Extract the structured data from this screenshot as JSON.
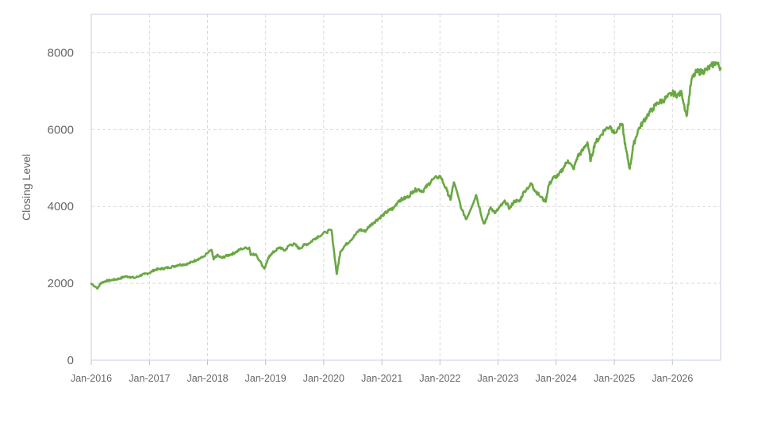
{
  "chart_data": {
    "type": "line",
    "title": "",
    "xlabel": "",
    "ylabel": "Closing Level",
    "xlim": [
      "2016-01-01",
      "2026-10-31"
    ],
    "ylim": [
      0,
      9000
    ],
    "y_ticks": [
      0,
      2000,
      4000,
      6000,
      8000
    ],
    "x_ticks": [
      {
        "date": "2016-01-01",
        "label": "Jan-2016"
      },
      {
        "date": "2017-01-01",
        "label": "Jan-2017"
      },
      {
        "date": "2018-01-01",
        "label": "Jan-2018"
      },
      {
        "date": "2019-01-01",
        "label": "Jan-2019"
      },
      {
        "date": "2020-01-01",
        "label": "Jan-2020"
      },
      {
        "date": "2021-01-01",
        "label": "Jan-2021"
      },
      {
        "date": "2022-01-01",
        "label": "Jan-2022"
      },
      {
        "date": "2023-01-01",
        "label": "Jan-2023"
      },
      {
        "date": "2024-01-01",
        "label": "Jan-2024"
      },
      {
        "date": "2025-01-01",
        "label": "Jan-2025"
      },
      {
        "date": "2026-01-01",
        "label": "Jan-2026"
      }
    ],
    "grid": true,
    "legend": "none",
    "series": [
      {
        "color": "#6aa843",
        "x": [
          "2016-01-01",
          "2016-02-11",
          "2016-03-01",
          "2016-04-01",
          "2016-05-01",
          "2016-06-01",
          "2016-07-01",
          "2016-08-01",
          "2016-09-01",
          "2016-10-01",
          "2016-11-01",
          "2016-12-01",
          "2017-01-01",
          "2017-02-01",
          "2017-03-01",
          "2017-04-01",
          "2017-05-01",
          "2017-06-01",
          "2017-07-01",
          "2017-08-01",
          "2017-09-01",
          "2017-10-01",
          "2017-11-01",
          "2017-12-01",
          "2018-01-26",
          "2018-02-08",
          "2018-03-01",
          "2018-04-01",
          "2018-05-01",
          "2018-06-01",
          "2018-07-01",
          "2018-08-01",
          "2018-09-20",
          "2018-10-01",
          "2018-11-01",
          "2018-12-24",
          "2019-01-15",
          "2019-02-01",
          "2019-03-01",
          "2019-04-01",
          "2019-05-01",
          "2019-06-01",
          "2019-07-01",
          "2019-08-01",
          "2019-09-01",
          "2019-10-01",
          "2019-11-01",
          "2019-12-01",
          "2020-01-15",
          "2020-02-19",
          "2020-03-23",
          "2020-04-15",
          "2020-05-15",
          "2020-06-15",
          "2020-07-15",
          "2020-08-15",
          "2020-09-15",
          "2020-10-15",
          "2020-11-15",
          "2020-12-15",
          "2021-01-15",
          "2021-02-15",
          "2021-03-15",
          "2021-04-15",
          "2021-05-15",
          "2021-06-15",
          "2021-07-15",
          "2021-08-15",
          "2021-09-15",
          "2021-10-15",
          "2021-11-15",
          "2022-01-03",
          "2022-02-15",
          "2022-03-08",
          "2022-03-29",
          "2022-05-20",
          "2022-06-16",
          "2022-08-16",
          "2022-09-30",
          "2022-10-12",
          "2022-11-15",
          "2022-12-15",
          "2023-01-15",
          "2023-02-15",
          "2023-03-15",
          "2023-04-15",
          "2023-05-15",
          "2023-06-15",
          "2023-07-31",
          "2023-08-15",
          "2023-09-15",
          "2023-10-27",
          "2023-11-15",
          "2023-12-15",
          "2024-01-15",
          "2024-02-15",
          "2024-03-15",
          "2024-04-19",
          "2024-05-15",
          "2024-06-15",
          "2024-07-16",
          "2024-08-05",
          "2024-09-01",
          "2024-10-01",
          "2024-11-01",
          "2024-12-06",
          "2025-01-01",
          "2025-02-19",
          "2025-03-13",
          "2025-04-08",
          "2025-05-01",
          "2025-06-01",
          "2025-07-01",
          "2025-08-01",
          "2025-09-01",
          "2025-10-01",
          "2025-11-01",
          "2025-12-01",
          "2026-01-01",
          "2026-02-01",
          "2026-03-01",
          "2026-03-31",
          "2026-05-01",
          "2026-06-01",
          "2026-07-01",
          "2026-08-01",
          "2026-09-01",
          "2026-10-01",
          "2026-10-31"
        ],
        "y": [
          1990,
          1870,
          2010,
          2060,
          2080,
          2100,
          2130,
          2180,
          2170,
          2140,
          2200,
          2240,
          2270,
          2350,
          2370,
          2390,
          2410,
          2440,
          2480,
          2490,
          2510,
          2570,
          2630,
          2680,
          2870,
          2620,
          2730,
          2660,
          2720,
          2760,
          2820,
          2900,
          2930,
          2740,
          2760,
          2380,
          2620,
          2750,
          2840,
          2940,
          2850,
          3000,
          3020,
          2900,
          3000,
          3040,
          3150,
          3230,
          3330,
          3390,
          2240,
          2830,
          2990,
          3110,
          3250,
          3400,
          3350,
          3490,
          3600,
          3700,
          3800,
          3900,
          3950,
          4150,
          4200,
          4250,
          4400,
          4450,
          4400,
          4550,
          4700,
          4790,
          4400,
          4170,
          4630,
          3900,
          3670,
          4300,
          3600,
          3580,
          3980,
          3830,
          4000,
          4130,
          3950,
          4150,
          4130,
          4400,
          4590,
          4450,
          4300,
          4120,
          4550,
          4750,
          4800,
          5000,
          5200,
          4970,
          5300,
          5450,
          5670,
          5180,
          5650,
          5800,
          6000,
          6090,
          5900,
          6150,
          5520,
          4980,
          5600,
          6000,
          6200,
          6400,
          6550,
          6700,
          6750,
          6850,
          6950,
          6900,
          6950,
          6350,
          7300,
          7500,
          7500,
          7550,
          7650,
          7750,
          7600
        ]
      }
    ]
  }
}
